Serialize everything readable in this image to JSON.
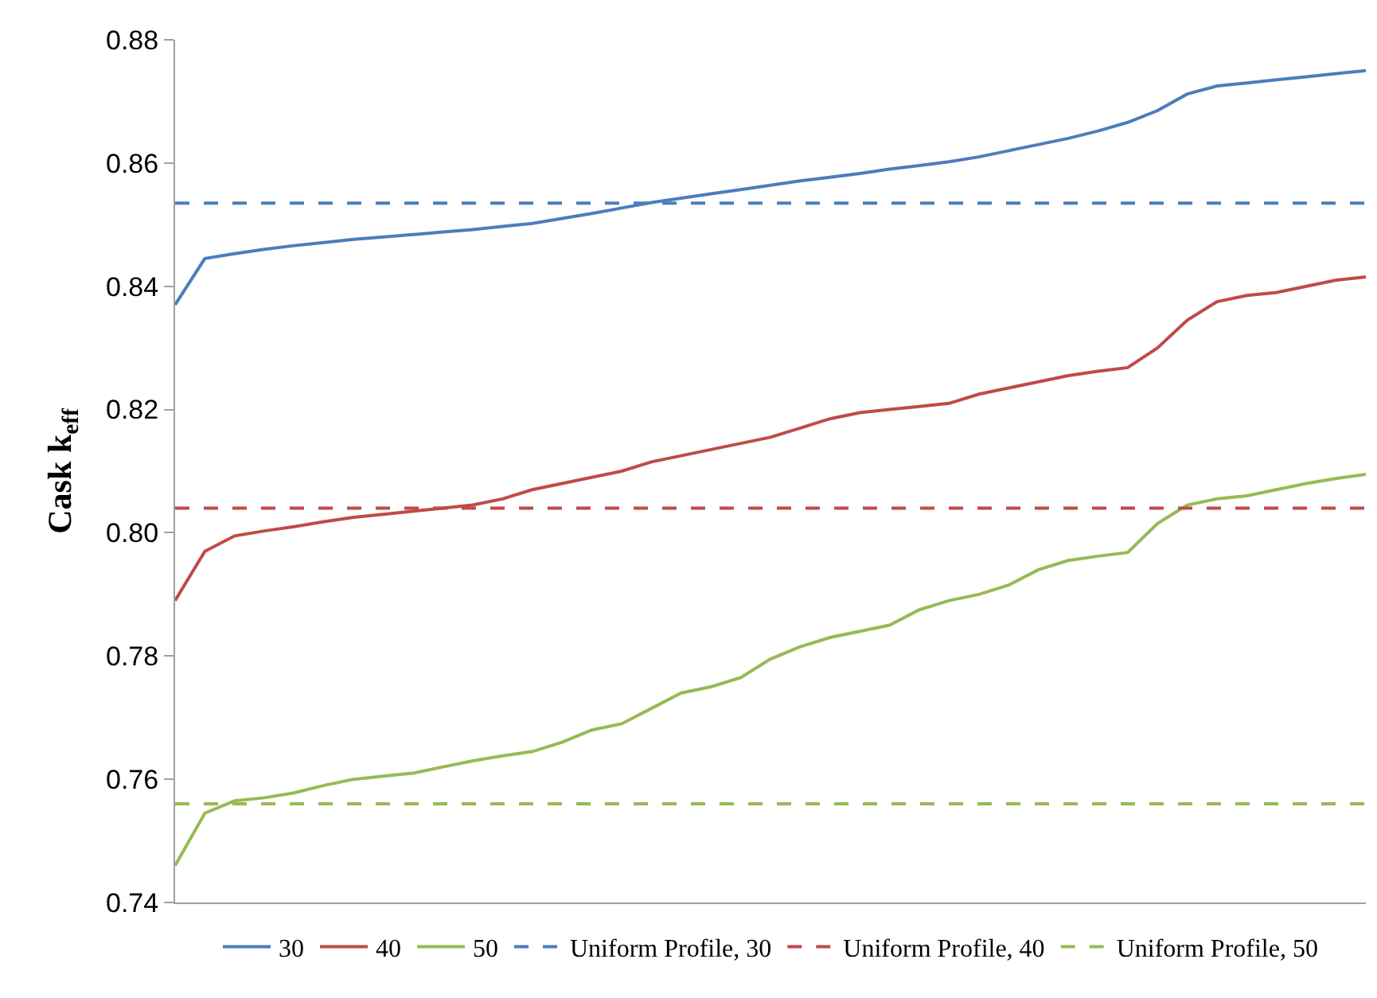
{
  "chart_data": {
    "type": "line",
    "ylabel": "Cask k$_{eff}$",
    "categories": [
      null,
      null,
      null,
      null,
      null,
      null,
      null,
      null,
      null,
      null,
      null,
      null,
      null,
      null,
      null,
      null,
      null,
      null,
      null,
      null,
      null,
      null,
      null,
      null,
      null,
      null,
      null,
      null,
      null,
      null,
      null,
      null,
      null,
      null,
      null,
      null,
      null,
      null,
      null,
      null,
      null
    ],
    "ylim": [
      0.74,
      0.88
    ],
    "yticks": [
      {
        "value": 0.74,
        "label": "0.74"
      },
      {
        "value": 0.76,
        "label": "0.76"
      },
      {
        "value": 0.78,
        "label": "0.78"
      },
      {
        "value": 0.8,
        "label": "0.80"
      },
      {
        "value": 0.82,
        "label": "0.82"
      },
      {
        "value": 0.84,
        "label": "0.84"
      },
      {
        "value": 0.86,
        "label": "0.86"
      },
      {
        "value": 0.88,
        "label": "0.88"
      }
    ],
    "legend": "bottom",
    "marker": "none",
    "series": [
      {
        "name": "30",
        "color": "#4a7ebb",
        "line_style": "solid",
        "values": [
          0.837,
          0.8445,
          0.8453,
          0.846,
          0.8466,
          0.8471,
          0.8476,
          0.848,
          0.8484,
          0.8488,
          0.8492,
          0.8497,
          0.8502,
          0.851,
          0.8518,
          0.8527,
          0.8536,
          0.8543,
          0.855,
          0.8557,
          0.8564,
          0.8571,
          0.8577,
          0.8583,
          0.859,
          0.8596,
          0.8602,
          0.861,
          0.862,
          0.863,
          0.864,
          0.8652,
          0.8666,
          0.8685,
          0.8712,
          0.8725,
          0.873,
          0.8735,
          0.874,
          0.8745,
          0.875
        ]
      },
      {
        "name": "40",
        "color": "#be4b48",
        "line_style": "solid",
        "values": [
          0.789,
          0.797,
          0.7995,
          0.8003,
          0.801,
          0.8018,
          0.8025,
          0.803,
          0.8035,
          0.804,
          0.8045,
          0.8055,
          0.807,
          0.808,
          0.809,
          0.81,
          0.8115,
          0.8125,
          0.8135,
          0.8145,
          0.8155,
          0.817,
          0.8185,
          0.8195,
          0.82,
          0.8205,
          0.821,
          0.8225,
          0.8235,
          0.8245,
          0.8255,
          0.8262,
          0.8268,
          0.83,
          0.8345,
          0.8375,
          0.8385,
          0.839,
          0.84,
          0.841,
          0.8415
        ]
      },
      {
        "name": "50",
        "color": "#98b954",
        "line_style": "solid",
        "values": [
          0.746,
          0.7545,
          0.7565,
          0.757,
          0.7578,
          0.759,
          0.76,
          0.7605,
          0.761,
          0.762,
          0.763,
          0.7638,
          0.7645,
          0.766,
          0.768,
          0.769,
          0.7715,
          0.774,
          0.775,
          0.7765,
          0.7795,
          0.7815,
          0.783,
          0.784,
          0.785,
          0.7875,
          0.789,
          0.79,
          0.7915,
          0.794,
          0.7955,
          0.7962,
          0.7968,
          0.8015,
          0.8045,
          0.8055,
          0.806,
          0.807,
          0.808,
          0.8088,
          0.8095
        ]
      },
      {
        "name": "Uniform Profile, 30",
        "color": "#4a7ebb",
        "line_style": "dashed",
        "values": [
          0.8535,
          0.8535,
          0.8535,
          0.8535,
          0.8535,
          0.8535,
          0.8535,
          0.8535,
          0.8535,
          0.8535,
          0.8535,
          0.8535,
          0.8535,
          0.8535,
          0.8535,
          0.8535,
          0.8535,
          0.8535,
          0.8535,
          0.8535,
          0.8535,
          0.8535,
          0.8535,
          0.8535,
          0.8535,
          0.8535,
          0.8535,
          0.8535,
          0.8535,
          0.8535,
          0.8535,
          0.8535,
          0.8535,
          0.8535,
          0.8535,
          0.8535,
          0.8535,
          0.8535,
          0.8535,
          0.8535,
          0.8535
        ]
      },
      {
        "name": "Uniform Profile, 40",
        "color": "#be4b48",
        "line_style": "dashed",
        "values": [
          0.804,
          0.804,
          0.804,
          0.804,
          0.804,
          0.804,
          0.804,
          0.804,
          0.804,
          0.804,
          0.804,
          0.804,
          0.804,
          0.804,
          0.804,
          0.804,
          0.804,
          0.804,
          0.804,
          0.804,
          0.804,
          0.804,
          0.804,
          0.804,
          0.804,
          0.804,
          0.804,
          0.804,
          0.804,
          0.804,
          0.804,
          0.804,
          0.804,
          0.804,
          0.804,
          0.804,
          0.804,
          0.804,
          0.804,
          0.804,
          0.804
        ]
      },
      {
        "name": "Uniform Profile, 50",
        "color": "#98b954",
        "line_style": "dashed",
        "values": [
          0.756,
          0.756,
          0.756,
          0.756,
          0.756,
          0.756,
          0.756,
          0.756,
          0.756,
          0.756,
          0.756,
          0.756,
          0.756,
          0.756,
          0.756,
          0.756,
          0.756,
          0.756,
          0.756,
          0.756,
          0.756,
          0.756,
          0.756,
          0.756,
          0.756,
          0.756,
          0.756,
          0.756,
          0.756,
          0.756,
          0.756,
          0.756,
          0.756,
          0.756,
          0.756,
          0.756,
          0.756,
          0.756,
          0.756,
          0.756,
          0.756
        ]
      }
    ]
  }
}
